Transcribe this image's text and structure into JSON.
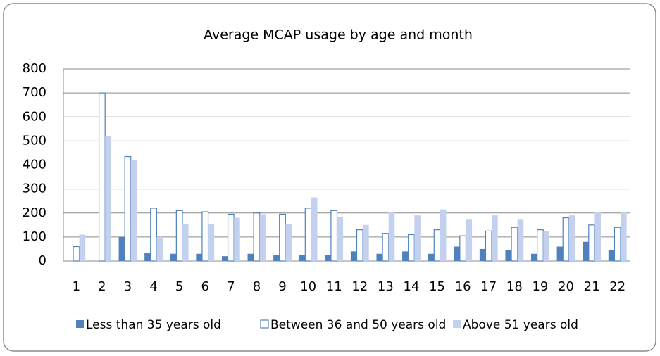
{
  "chart_data": {
    "type": "bar",
    "title": "Average MCAP usage by age and month",
    "categories": [
      "1",
      "2",
      "3",
      "4",
      "5",
      "6",
      "7",
      "8",
      "9",
      "10",
      "11",
      "12",
      "13",
      "14",
      "15",
      "16",
      "17",
      "18",
      "19",
      "20",
      "21",
      "22"
    ],
    "series": [
      {
        "name": "Less than 35 years old",
        "color": "#4f81bd",
        "values": [
          0,
          0,
          100,
          35,
          30,
          30,
          20,
          30,
          25,
          25,
          25,
          40,
          30,
          40,
          30,
          60,
          50,
          45,
          30,
          60,
          80,
          45
        ]
      },
      {
        "name": "Between 36 and 50 years old",
        "color": "#4f81bd",
        "values": [
          60,
          700,
          435,
          220,
          210,
          205,
          195,
          200,
          195,
          220,
          210,
          130,
          115,
          110,
          130,
          105,
          125,
          140,
          130,
          180,
          150,
          140
        ]
      },
      {
        "name": "Above 51 years old",
        "color": "#c3d1ee",
        "values": [
          110,
          520,
          420,
          100,
          155,
          155,
          180,
          195,
          155,
          265,
          185,
          150,
          205,
          190,
          215,
          175,
          190,
          175,
          125,
          190,
          205,
          205
        ]
      }
    ],
    "ylim": [
      0,
      800
    ],
    "yticks": [
      0,
      100,
      200,
      300,
      400,
      500,
      600,
      700,
      800
    ],
    "grid": true
  }
}
